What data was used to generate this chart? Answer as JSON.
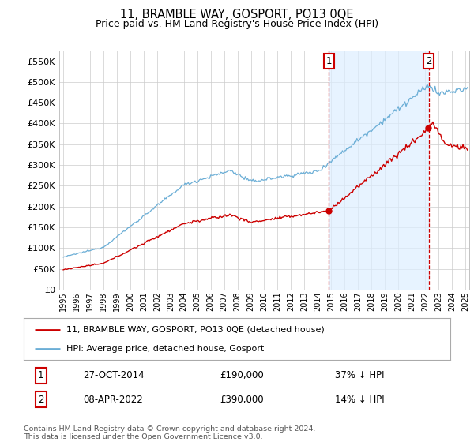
{
  "title": "11, BRAMBLE WAY, GOSPORT, PO13 0QE",
  "subtitle": "Price paid vs. HM Land Registry's House Price Index (HPI)",
  "hpi_color": "#6baed6",
  "price_color": "#cc0000",
  "background_color": "#ffffff",
  "plot_bg": "#ffffff",
  "shade_color": "#ddeeff",
  "ylim": [
    0,
    575000
  ],
  "yticks": [
    0,
    50000,
    100000,
    150000,
    200000,
    250000,
    300000,
    350000,
    400000,
    450000,
    500000,
    550000
  ],
  "sale1_price": 190000,
  "sale1_label": "27-OCT-2014",
  "sale1_year": 2014.83,
  "sale1_pct": "37%",
  "sale2_price": 390000,
  "sale2_label": "08-APR-2022",
  "sale2_year": 2022.27,
  "sale2_pct": "14%",
  "legend_line1": "11, BRAMBLE WAY, GOSPORT, PO13 0QE (detached house)",
  "legend_line2": "HPI: Average price, detached house, Gosport",
  "footer": "Contains HM Land Registry data © Crown copyright and database right 2024.\nThis data is licensed under the Open Government Licence v3.0.",
  "xstart_year": 1995,
  "xend_year": 2025
}
